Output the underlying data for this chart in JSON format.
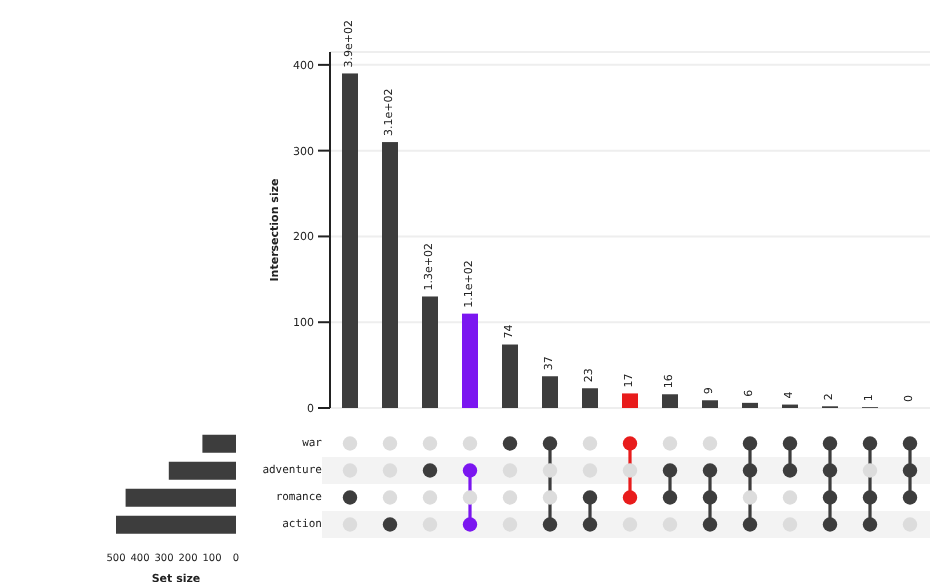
{
  "chart_data": [
    {
      "type": "bar",
      "ylabel": "Intersection size",
      "categories": [
        null,
        null,
        null,
        null,
        null,
        null,
        null,
        null,
        null,
        null,
        null,
        null,
        null,
        null,
        null
      ],
      "values": [
        390,
        310,
        130,
        110,
        74,
        37,
        23,
        17,
        16,
        9,
        6,
        4,
        2,
        1,
        0
      ],
      "value_labels": [
        "3.9e+02",
        "3.1e+02",
        "1.3e+02",
        "1.1e+02",
        "74",
        "37",
        "23",
        "17",
        "16",
        "9",
        "6",
        "4",
        "2",
        "1",
        "0"
      ],
      "colors": [
        "#3d3d3d",
        "#3d3d3d",
        "#3d3d3d",
        "#7b16f0",
        "#3d3d3d",
        "#3d3d3d",
        "#3d3d3d",
        "#e81c1c",
        "#3d3d3d",
        "#3d3d3d",
        "#3d3d3d",
        "#3d3d3d",
        "#3d3d3d",
        "#3d3d3d",
        "#3d3d3d"
      ],
      "ylim": [
        0,
        415
      ],
      "yticks": [
        0,
        100,
        200,
        300,
        400
      ],
      "grid": "y"
    },
    {
      "type": "bar",
      "orientation": "horizontal",
      "xlabel": "Set size",
      "categories": [
        "war",
        "adventure",
        "romance",
        "action"
      ],
      "values": [
        140,
        280,
        460,
        500
      ],
      "color": "#3d3d3d",
      "xlim": [
        500,
        0
      ],
      "xticks": [
        500,
        400,
        300,
        200,
        100,
        0
      ]
    }
  ]
}
